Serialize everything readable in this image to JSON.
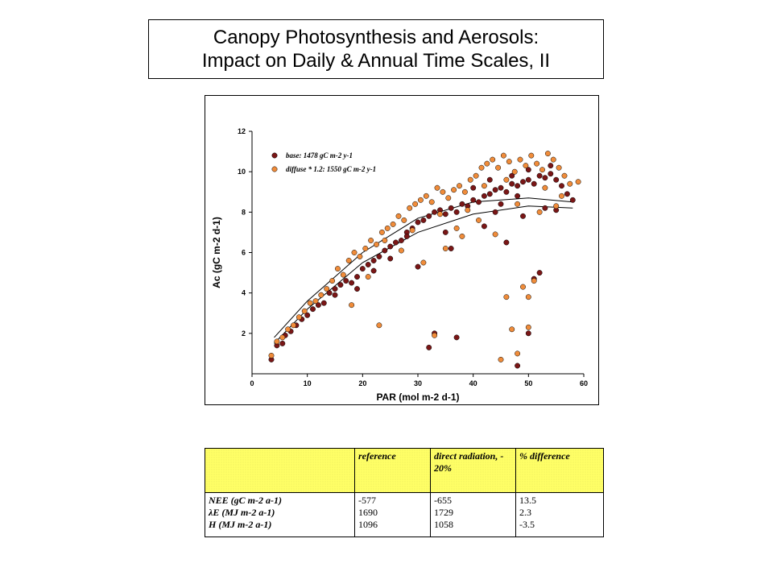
{
  "title": {
    "line1": "Canopy Photosynthesis and Aerosols:",
    "line2": "Impact on Daily & Annual Time Scales, II"
  },
  "colors": {
    "base": "#7a1616",
    "diffuse": "#f08c3a"
  },
  "chart_data": {
    "type": "scatter",
    "xlabel": "PAR (mol m-2 d-1)",
    "ylabel": "Ac (gC m-2 d-1)",
    "xlim": [
      0,
      60
    ],
    "ylim": [
      0,
      12
    ],
    "xticks": [
      "0",
      "10",
      "20",
      "30",
      "40",
      "50",
      "60"
    ],
    "yticks": [
      "2",
      "4",
      "6",
      "8",
      "10",
      "12"
    ],
    "legend_position": "top-left",
    "series": [
      {
        "name": "base: 1478 gC m-2 y-1",
        "color": "#7a1616",
        "points": [
          [
            3.5,
            0.7
          ],
          [
            4.5,
            1.4
          ],
          [
            5.5,
            1.5
          ],
          [
            6,
            1.9
          ],
          [
            7,
            2.1
          ],
          [
            8,
            2.4
          ],
          [
            9,
            2.7
          ],
          [
            10,
            2.9
          ],
          [
            11,
            3.2
          ],
          [
            12,
            3.4
          ],
          [
            13,
            3.5
          ],
          [
            14,
            4.0
          ],
          [
            15,
            4.2
          ],
          [
            16,
            4.4
          ],
          [
            17,
            4.6
          ],
          [
            18,
            4.5
          ],
          [
            19,
            4.8
          ],
          [
            20,
            5.2
          ],
          [
            21,
            5.4
          ],
          [
            22,
            5.6
          ],
          [
            23,
            5.8
          ],
          [
            24,
            6.1
          ],
          [
            25,
            6.3
          ],
          [
            26,
            6.5
          ],
          [
            27,
            6.6
          ],
          [
            28,
            7.0
          ],
          [
            29,
            7.2
          ],
          [
            30,
            7.5
          ],
          [
            31,
            7.6
          ],
          [
            32,
            7.8
          ],
          [
            33,
            8.0
          ],
          [
            34,
            8.1
          ],
          [
            35,
            7.9
          ],
          [
            36,
            8.2
          ],
          [
            37,
            8.0
          ],
          [
            38,
            8.4
          ],
          [
            39,
            8.3
          ],
          [
            40,
            8.6
          ],
          [
            41,
            8.5
          ],
          [
            42,
            8.8
          ],
          [
            43,
            8.9
          ],
          [
            44,
            9.1
          ],
          [
            45,
            9.2
          ],
          [
            46,
            9.0
          ],
          [
            47,
            9.4
          ],
          [
            48,
            9.3
          ],
          [
            49,
            9.5
          ],
          [
            50,
            9.6
          ],
          [
            51,
            9.4
          ],
          [
            52,
            9.8
          ],
          [
            53,
            9.7
          ],
          [
            54,
            9.9
          ],
          [
            55,
            9.6
          ],
          [
            56,
            9.3
          ],
          [
            57,
            8.9
          ],
          [
            58,
            8.6
          ],
          [
            30,
            5.3
          ],
          [
            32,
            1.3
          ],
          [
            33,
            2.0
          ],
          [
            37,
            1.8
          ],
          [
            46,
            6.5
          ],
          [
            48,
            0.4
          ],
          [
            50,
            2.0
          ],
          [
            51,
            4.7
          ],
          [
            52,
            5.0
          ],
          [
            25,
            5.7
          ],
          [
            28,
            6.8
          ],
          [
            35,
            7.0
          ],
          [
            42,
            7.3
          ],
          [
            44,
            8.0
          ],
          [
            49,
            7.8
          ],
          [
            53,
            8.2
          ],
          [
            15,
            3.9
          ],
          [
            19,
            4.2
          ],
          [
            22,
            5.1
          ],
          [
            36,
            6.2
          ],
          [
            40,
            9.2
          ],
          [
            45,
            8.4
          ],
          [
            48,
            8.8
          ],
          [
            55,
            8.1
          ],
          [
            43,
            9.6
          ],
          [
            47,
            9.8
          ],
          [
            50,
            10.1
          ],
          [
            54,
            10.3
          ]
        ]
      },
      {
        "name": "diffuse * 1.2: 1550 gC m-2 y-1",
        "color": "#f08c3a",
        "points": [
          [
            3.5,
            0.9
          ],
          [
            4.5,
            1.6
          ],
          [
            5.5,
            1.8
          ],
          [
            6.5,
            2.2
          ],
          [
            7.5,
            2.4
          ],
          [
            8.5,
            2.8
          ],
          [
            9.5,
            3.1
          ],
          [
            10.5,
            3.5
          ],
          [
            11.5,
            3.6
          ],
          [
            12.5,
            3.9
          ],
          [
            13.5,
            4.2
          ],
          [
            14.5,
            4.6
          ],
          [
            15.5,
            5.2
          ],
          [
            16.5,
            4.9
          ],
          [
            17.5,
            5.6
          ],
          [
            18.5,
            6.0
          ],
          [
            19.5,
            5.8
          ],
          [
            20.5,
            6.2
          ],
          [
            21.5,
            6.6
          ],
          [
            22.5,
            6.4
          ],
          [
            23.5,
            7.0
          ],
          [
            24.5,
            7.2
          ],
          [
            25.5,
            7.4
          ],
          [
            26.5,
            7.8
          ],
          [
            27.5,
            7.6
          ],
          [
            28.5,
            8.2
          ],
          [
            29.5,
            8.4
          ],
          [
            30.5,
            8.6
          ],
          [
            31.5,
            8.8
          ],
          [
            32.5,
            8.5
          ],
          [
            33.5,
            9.2
          ],
          [
            34.5,
            9.0
          ],
          [
            35.5,
            8.7
          ],
          [
            36.5,
            9.1
          ],
          [
            37.5,
            9.3
          ],
          [
            38.5,
            9.0
          ],
          [
            39.5,
            9.6
          ],
          [
            40.5,
            9.8
          ],
          [
            41.5,
            10.2
          ],
          [
            42.5,
            10.4
          ],
          [
            43.5,
            10.6
          ],
          [
            44.5,
            10.2
          ],
          [
            45.5,
            10.8
          ],
          [
            46.5,
            10.5
          ],
          [
            47.5,
            10.0
          ],
          [
            48.5,
            10.6
          ],
          [
            49.5,
            10.3
          ],
          [
            50.5,
            10.8
          ],
          [
            51.5,
            10.4
          ],
          [
            52.5,
            10.1
          ],
          [
            53.5,
            10.9
          ],
          [
            54.5,
            10.6
          ],
          [
            55.5,
            10.2
          ],
          [
            56.5,
            9.8
          ],
          [
            57.5,
            9.4
          ],
          [
            59,
            9.5
          ],
          [
            23,
            2.4
          ],
          [
            33,
            1.9
          ],
          [
            45,
            0.7
          ],
          [
            47,
            2.2
          ],
          [
            48,
            1.0
          ],
          [
            50,
            2.3
          ],
          [
            46,
            3.8
          ],
          [
            49,
            4.3
          ],
          [
            50,
            3.8
          ],
          [
            51,
            4.6
          ],
          [
            31,
            5.5
          ],
          [
            35,
            6.2
          ],
          [
            38,
            6.8
          ],
          [
            44,
            6.9
          ],
          [
            52,
            8.0
          ],
          [
            55,
            8.3
          ],
          [
            18,
            3.4
          ],
          [
            21,
            4.8
          ],
          [
            24,
            6.6
          ],
          [
            27,
            6.1
          ],
          [
            29,
            7.1
          ],
          [
            34,
            7.9
          ],
          [
            39,
            8.1
          ],
          [
            42,
            9.3
          ],
          [
            46,
            9.6
          ],
          [
            48,
            8.4
          ],
          [
            53,
            9.2
          ],
          [
            56,
            8.8
          ],
          [
            41,
            7.6
          ],
          [
            37,
            7.2
          ]
        ]
      }
    ],
    "fit_curves": [
      {
        "series": "base",
        "x": [
          4,
          10,
          20,
          30,
          40,
          50,
          58
        ],
        "y": [
          1.5,
          3.2,
          5.5,
          7.0,
          7.9,
          8.3,
          8.2
        ]
      },
      {
        "series": "diffuse",
        "x": [
          4,
          10,
          20,
          30,
          40,
          50,
          58
        ],
        "y": [
          1.8,
          3.6,
          6.0,
          7.7,
          8.5,
          8.7,
          8.5
        ]
      }
    ]
  },
  "table": {
    "headers": [
      "",
      "reference",
      "direct radiation, - 20%",
      "% difference"
    ],
    "rows": [
      {
        "label": "NEE (gC m-2 a-1)",
        "reference": "-577",
        "direct": "-655",
        "diff": "13.5"
      },
      {
        "label": "λE (MJ m-2 a-1)",
        "reference": "1690",
        "direct": "1729",
        "diff": "2.3"
      },
      {
        "label": "H (MJ m-2 a-1)",
        "reference": "1096",
        "direct": "1058",
        "diff": "-3.5"
      }
    ]
  }
}
